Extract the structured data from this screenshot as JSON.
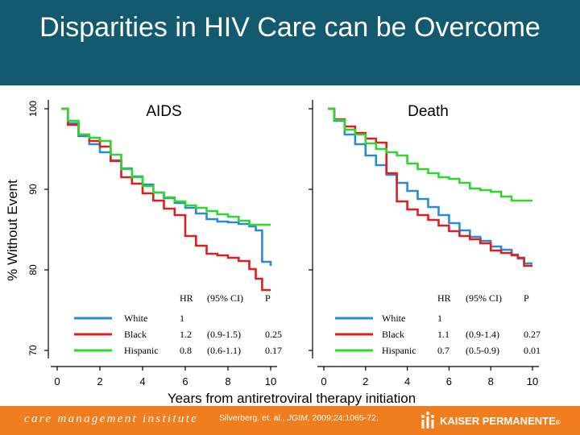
{
  "slide": {
    "title": "Disparities in HIV Care can be Overcome",
    "colors": {
      "header": "#135a6e",
      "footer": "#f07d1e"
    }
  },
  "footer": {
    "left_text": "care management institute",
    "citation_pre": "Silverberg, et. al., ",
    "citation_journal": "JGIM",
    "citation_post": ", 2009;24:1065-72.",
    "brand": "KAISER PERMANENTE",
    "brand_mark": "®",
    "logo_icon": "kaiser-permanente-logo-icon"
  },
  "chart_data": {
    "type": "line",
    "ylabel": "% Without Event",
    "xlabel": "Years from antiretroviral therapy initiation",
    "ylim": [
      70,
      100
    ],
    "xlim": [
      0,
      10
    ],
    "yticks": [
      "70",
      "80",
      "90",
      "100"
    ],
    "xticks": [
      "0",
      "2",
      "4",
      "6",
      "8",
      "10"
    ],
    "table_headers": {
      "hr": "HR",
      "ci": "(95% CI)",
      "p": "P"
    },
    "panels": [
      {
        "title": "AIDS",
        "series": [
          {
            "name": "White",
            "color": "#2b8ad6",
            "hr": "1",
            "ci": "",
            "p": "",
            "x": [
              0.2,
              0.5,
              1,
              1.5,
              2,
              2.5,
              3,
              3.5,
              4,
              4.5,
              5,
              5.5,
              6,
              6.5,
              7,
              7.5,
              8,
              8.5,
              9,
              9.3,
              9.6,
              10
            ],
            "y": [
              100,
              98.2,
              96.6,
              95.6,
              94.6,
              93.6,
              92.6,
              91.6,
              90.6,
              89.6,
              88.9,
              88.3,
              87.7,
              87.0,
              86.3,
              86.0,
              85.9,
              85.7,
              85.4,
              84.9,
              81.0,
              80.5
            ]
          },
          {
            "name": "Black",
            "color": "#dc1f1f",
            "hr": "1.2",
            "ci": "(0.9-1.5)",
            "p": "0.25",
            "x": [
              0.2,
              0.5,
              1,
              1.5,
              2,
              2.5,
              3,
              3.5,
              4,
              4.5,
              5,
              5.5,
              6,
              6.5,
              7,
              7.5,
              8,
              8.5,
              9,
              9.3,
              9.6,
              10
            ],
            "y": [
              100,
              98.0,
              96.8,
              96.0,
              95.3,
              93.5,
              91.5,
              90.7,
              89.5,
              88.6,
              87.6,
              86.8,
              84.2,
              83.0,
              82.0,
              81.8,
              81.5,
              81.1,
              80.1,
              78.9,
              77.5,
              77.5
            ]
          },
          {
            "name": "Hispanic",
            "color": "#2ed62e",
            "hr": "0.8",
            "ci": "(0.6-1.1)",
            "p": "0.17",
            "x": [
              0.2,
              0.5,
              1,
              1.5,
              2,
              2.5,
              3,
              3.5,
              4,
              4.5,
              5,
              5.5,
              6,
              6.5,
              7,
              7.5,
              8,
              8.5,
              9,
              9.3,
              9.6,
              10
            ],
            "y": [
              100,
              98.5,
              96.8,
              96.4,
              96.0,
              94.3,
              92.5,
              91.5,
              90.4,
              89.6,
              89.0,
              88.5,
              88.0,
              87.7,
              87.3,
              86.9,
              86.6,
              86.1,
              85.6,
              85.6,
              85.6,
              85.6
            ]
          }
        ]
      },
      {
        "title": "Death",
        "series": [
          {
            "name": "White",
            "color": "#2b8ad6",
            "hr": "1",
            "ci": "",
            "p": "",
            "x": [
              0.2,
              0.5,
              1,
              1.5,
              2,
              2.5,
              3,
              3.5,
              4,
              4.5,
              5,
              5.5,
              6,
              6.5,
              7,
              7.5,
              8,
              8.5,
              9,
              9.3,
              9.6,
              10
            ],
            "y": [
              100,
              98.5,
              96.8,
              95.6,
              94.2,
              93.0,
              91.8,
              90.8,
              89.8,
              88.8,
              87.8,
              86.8,
              85.8,
              84.9,
              84.1,
              83.6,
              82.9,
              82.5,
              81.9,
              81.4,
              80.8,
              80.8
            ]
          },
          {
            "name": "Black",
            "color": "#dc1f1f",
            "hr": "1.1",
            "ci": "(0.9-1.4)",
            "p": "0.27",
            "x": [
              0.2,
              0.5,
              1,
              1.5,
              2,
              2.5,
              3,
              3.5,
              4,
              4.5,
              5,
              5.5,
              6,
              6.5,
              7,
              7.5,
              8,
              8.5,
              9,
              9.3,
              9.6,
              10
            ],
            "y": [
              100,
              98.7,
              97.8,
              97.0,
              96.3,
              95.8,
              92.0,
              88.5,
              87.5,
              86.8,
              86.2,
              85.5,
              84.8,
              84.2,
              83.8,
              83.3,
              82.4,
              82.1,
              81.8,
              81.5,
              80.5,
              80.5
            ]
          },
          {
            "name": "Hispanic",
            "color": "#2ed62e",
            "hr": "0.7",
            "ci": "(0.5-0.9)",
            "p": "0.01",
            "x": [
              0.2,
              0.5,
              1,
              1.5,
              2,
              2.5,
              3,
              3.5,
              4,
              4.5,
              5,
              5.5,
              6,
              6.5,
              7,
              7.5,
              8,
              8.5,
              9,
              9.3,
              9.6,
              10
            ],
            "y": [
              100,
              98.6,
              97.4,
              96.8,
              95.7,
              95.0,
              94.6,
              94.2,
              93.2,
              92.5,
              92.0,
              91.5,
              91.3,
              90.8,
              90.1,
              89.9,
              89.7,
              89.1,
              88.6,
              88.6,
              88.6,
              88.6
            ]
          }
        ]
      }
    ]
  }
}
